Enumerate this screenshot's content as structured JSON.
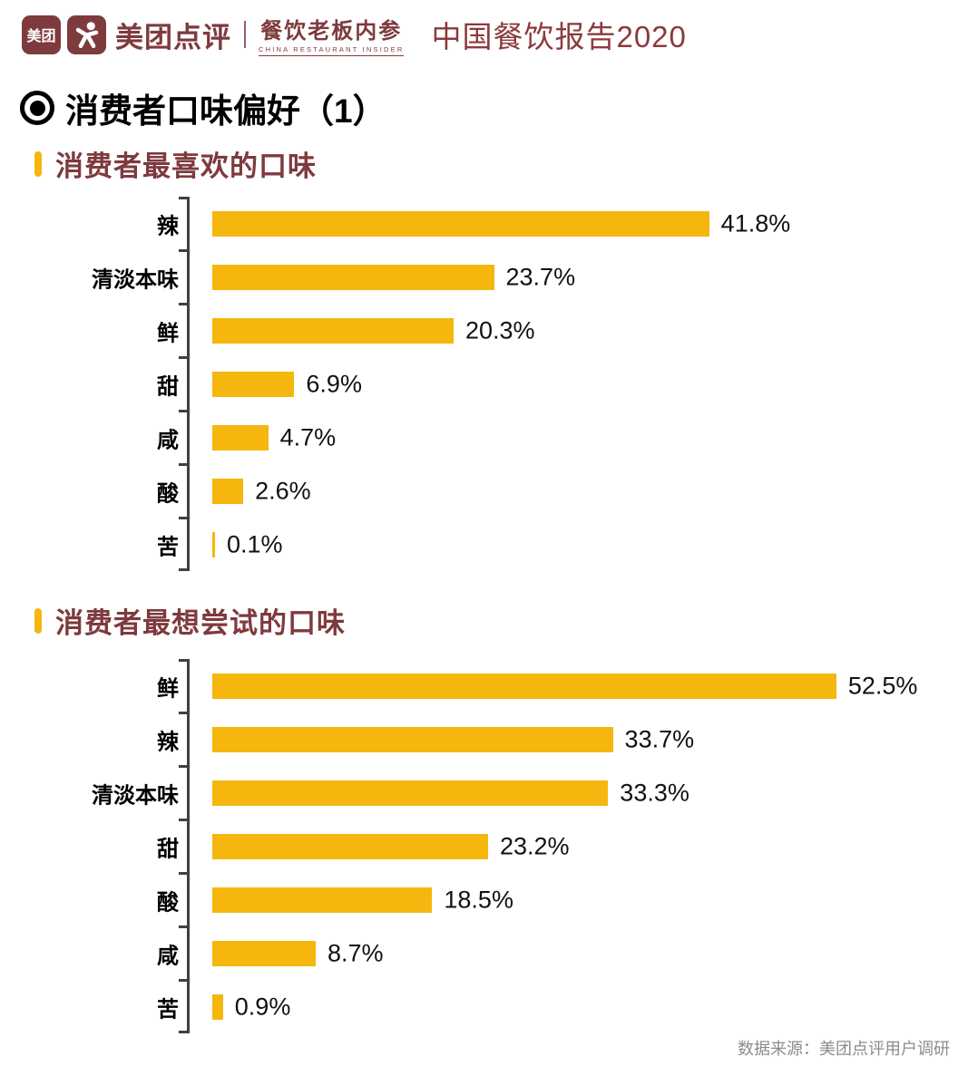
{
  "header": {
    "meituan_badge_text": "美团",
    "brand": "美团点评",
    "sub_brand": "餐饮老板内参",
    "sub_brand_en": "CHINA RESTAURANT INSIDER",
    "report_title": "中国餐饮报告2020"
  },
  "page_title": "消费者口味偏好（1）",
  "colors": {
    "bar_yellow": "#F5B70D",
    "brand_maroon": "#7E3A3D",
    "axis_gray": "#3F4040",
    "value_text": "#111111",
    "footer_gray": "#8C8C8C"
  },
  "chart_data": [
    {
      "type": "bar",
      "orientation": "horizontal",
      "title": "消费者最喜欢的口味",
      "categories": [
        "辣",
        "清淡本味",
        "鲜",
        "甜",
        "咸",
        "酸",
        "苦"
      ],
      "values": [
        41.8,
        23.7,
        20.3,
        6.9,
        4.7,
        2.6,
        0.1
      ],
      "value_labels": [
        "41.8%",
        "23.7%",
        "20.3%",
        "6.9%",
        "4.7%",
        "2.6%",
        "0.1%"
      ],
      "xlabel": "",
      "ylabel": "",
      "xlim": [
        0,
        63.5
      ],
      "grid": false,
      "legend": false,
      "bar_color": "#F5B70D"
    },
    {
      "type": "bar",
      "orientation": "horizontal",
      "title": "消费者最想尝试的口味",
      "categories": [
        "鲜",
        "辣",
        "清淡本味",
        "甜",
        "酸",
        "咸",
        "苦"
      ],
      "values": [
        52.5,
        33.7,
        33.3,
        23.2,
        18.5,
        8.7,
        0.9
      ],
      "value_labels": [
        "52.5%",
        "33.7%",
        "33.3%",
        "23.2%",
        "18.5%",
        "8.7%",
        "0.9%"
      ],
      "xlabel": "",
      "ylabel": "",
      "xlim": [
        0,
        63.5
      ],
      "grid": false,
      "legend": false,
      "bar_color": "#F5B70D"
    }
  ],
  "footer": {
    "source": "数据来源：美团点评用户调研"
  }
}
